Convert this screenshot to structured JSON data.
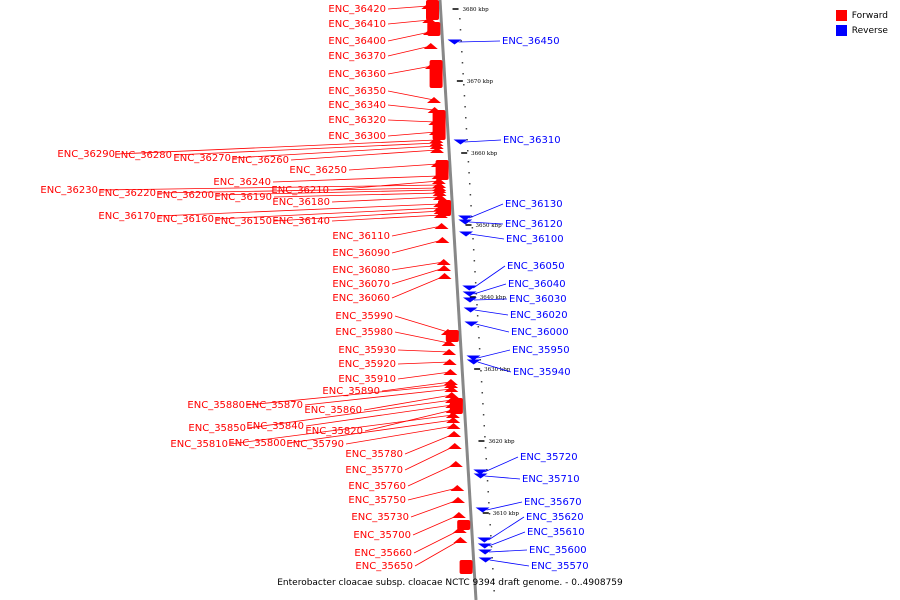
{
  "legend": {
    "forward_label": "Forward",
    "reverse_label": "Reverse",
    "forward_color": "#ff0000",
    "reverse_color": "#0000ff"
  },
  "caption": "Enterobacter cloacae subsp. cloacae NCTC 9394 draft genome. - 0..4908759",
  "ticks": [
    "3680 kbp",
    "3670 kbp",
    "3660 kbp",
    "3650 kbp",
    "3640 kbp",
    "3630 kbp",
    "3620 kbp",
    "3610 kbp"
  ],
  "forward_genes": [
    "ENC_36420",
    "ENC_36410",
    "ENC_36400",
    "ENC_36370",
    "ENC_36360",
    "ENC_36350",
    "ENC_36340",
    "ENC_36320",
    "ENC_36300",
    "ENC_36290",
    "ENC_36280",
    "ENC_36270",
    "ENC_36260",
    "ENC_36250",
    "ENC_36240",
    "ENC_36210",
    "ENC_36230",
    "ENC_36220",
    "ENC_36200",
    "ENC_36190",
    "ENC_36180",
    "ENC_36170",
    "ENC_36160",
    "ENC_36150",
    "ENC_36140",
    "ENC_36110",
    "ENC_36090",
    "ENC_36080",
    "ENC_36070",
    "ENC_36060",
    "ENC_35990",
    "ENC_35980",
    "ENC_35930",
    "ENC_35920",
    "ENC_35910",
    "ENC_35890",
    "ENC_35880",
    "ENC_35870",
    "ENC_35860",
    "ENC_35850",
    "ENC_35840",
    "ENC_35820",
    "ENC_35810",
    "ENC_35800",
    "ENC_35790",
    "ENC_35780",
    "ENC_35770",
    "ENC_35760",
    "ENC_35750",
    "ENC_35730",
    "ENC_35700",
    "ENC_35660",
    "ENC_35650"
  ],
  "reverse_genes": [
    "ENC_36450",
    "ENC_36310",
    "ENC_36130",
    "ENC_36120",
    "ENC_36100",
    "ENC_36050",
    "ENC_36040",
    "ENC_36030",
    "ENC_36020",
    "ENC_36000",
    "ENC_35950",
    "ENC_35940",
    "ENC_35720",
    "ENC_35710",
    "ENC_35670",
    "ENC_35620",
    "ENC_35610",
    "ENC_35600",
    "ENC_35570"
  ]
}
